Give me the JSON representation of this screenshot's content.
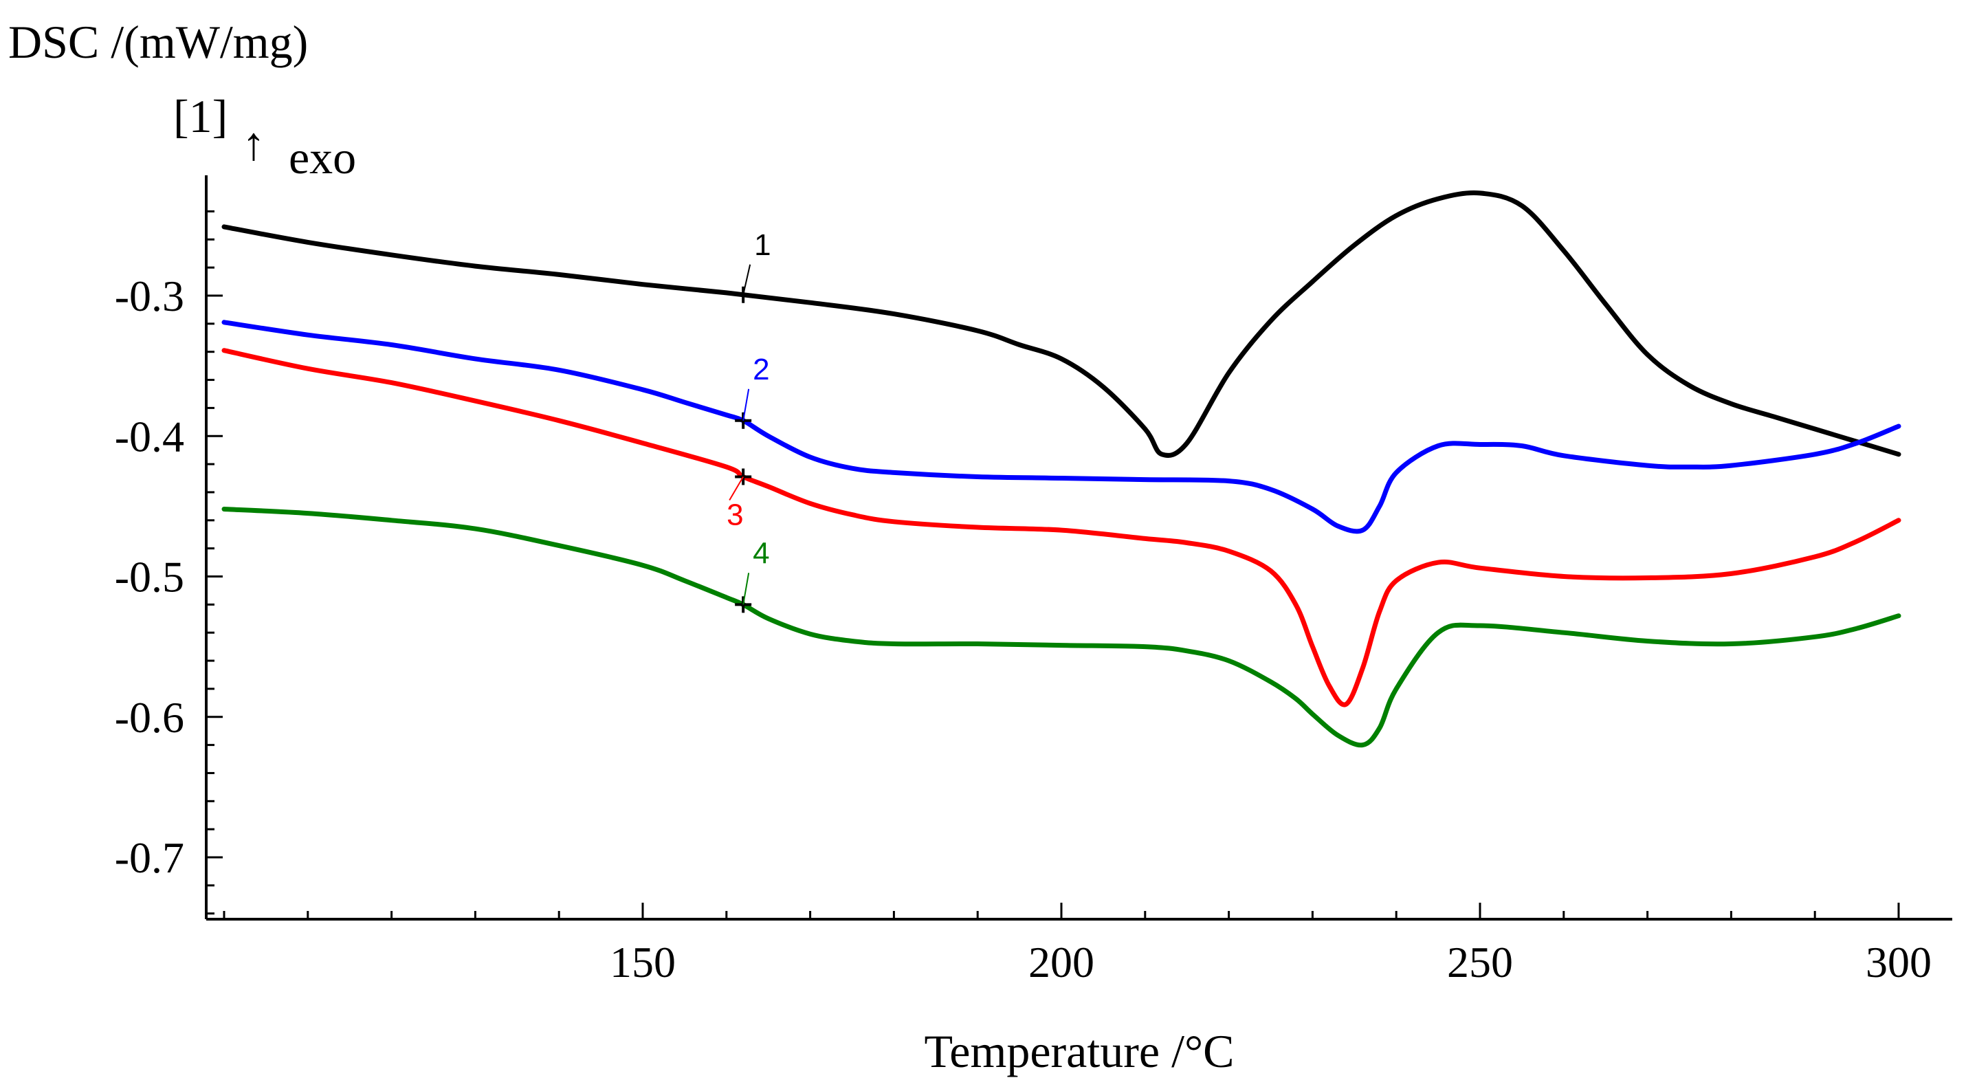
{
  "chart_data": {
    "type": "line",
    "title": "",
    "ylabel": "DSC /(mW/mg)",
    "ylabel_sub": "[1]",
    "exo_arrow": "↑",
    "exo_label": "exo",
    "xlabel": "Temperature /°C",
    "xlim": [
      98,
      306
    ],
    "ylim": [
      -0.76,
      -0.23
    ],
    "xticks": [
      150,
      200,
      250,
      300
    ],
    "xtick_labels": [
      "150",
      "200",
      "250",
      "300"
    ],
    "yticks": [
      -0.3,
      -0.4,
      -0.5,
      -0.6,
      -0.7
    ],
    "ytick_labels": [
      "-0.3",
      "-0.4",
      "-0.5",
      "-0.6",
      "-0.7"
    ],
    "marker_x": 162,
    "series": [
      {
        "name": "1",
        "color": "#000000",
        "x": [
          100,
          110,
          120,
          130,
          140,
          150,
          160,
          170,
          180,
          190,
          195,
          200,
          205,
          210,
          212,
          215,
          220,
          225,
          230,
          235,
          240,
          245,
          250,
          255,
          260,
          265,
          270,
          275,
          280,
          285,
          290,
          295,
          300
        ],
        "y": [
          -0.251,
          -0.262,
          -0.271,
          -0.279,
          -0.285,
          -0.292,
          -0.298,
          -0.305,
          -0.313,
          -0.325,
          -0.335,
          -0.345,
          -0.365,
          -0.395,
          -0.413,
          -0.405,
          -0.355,
          -0.318,
          -0.29,
          -0.264,
          -0.243,
          -0.231,
          -0.227,
          -0.236,
          -0.268,
          -0.306,
          -0.342,
          -0.364,
          -0.377,
          -0.386,
          -0.395,
          -0.404,
          -0.413
        ]
      },
      {
        "name": "2",
        "color": "#0000ff",
        "x": [
          100,
          110,
          120,
          130,
          140,
          150,
          155,
          160,
          162,
          165,
          170,
          175,
          180,
          190,
          200,
          210,
          220,
          225,
          230,
          233,
          236,
          238,
          240,
          245,
          250,
          255,
          260,
          270,
          275,
          280,
          290,
          295,
          300
        ],
        "y": [
          -0.319,
          -0.328,
          -0.335,
          -0.345,
          -0.353,
          -0.367,
          -0.376,
          -0.385,
          -0.389,
          -0.4,
          -0.415,
          -0.423,
          -0.426,
          -0.429,
          -0.43,
          -0.431,
          -0.432,
          -0.438,
          -0.452,
          -0.464,
          -0.467,
          -0.45,
          -0.426,
          -0.407,
          -0.406,
          -0.407,
          -0.414,
          -0.421,
          -0.422,
          -0.421,
          -0.413,
          -0.405,
          -0.393
        ]
      },
      {
        "name": "3",
        "color": "#ff0000",
        "x": [
          100,
          110,
          120,
          130,
          140,
          150,
          160,
          162,
          165,
          170,
          175,
          180,
          190,
          200,
          210,
          215,
          220,
          225,
          228,
          230,
          232,
          234,
          236,
          238,
          240,
          245,
          250,
          260,
          270,
          280,
          290,
          295,
          300
        ],
        "y": [
          -0.339,
          -0.352,
          -0.362,
          -0.375,
          -0.389,
          -0.405,
          -0.422,
          -0.429,
          -0.436,
          -0.448,
          -0.456,
          -0.461,
          -0.465,
          -0.467,
          -0.473,
          -0.476,
          -0.482,
          -0.496,
          -0.52,
          -0.55,
          -0.578,
          -0.591,
          -0.565,
          -0.525,
          -0.503,
          -0.49,
          -0.494,
          -0.5,
          -0.501,
          -0.498,
          -0.486,
          -0.475,
          -0.46
        ]
      },
      {
        "name": "4",
        "color": "#008000",
        "x": [
          100,
          110,
          120,
          130,
          140,
          150,
          155,
          160,
          162,
          165,
          170,
          175,
          180,
          190,
          200,
          210,
          215,
          220,
          225,
          228,
          230,
          233,
          236,
          238,
          240,
          245,
          250,
          260,
          270,
          280,
          290,
          295,
          300
        ],
        "y": [
          -0.452,
          -0.455,
          -0.46,
          -0.466,
          -0.478,
          -0.492,
          -0.503,
          -0.515,
          -0.52,
          -0.53,
          -0.541,
          -0.546,
          -0.548,
          -0.548,
          -0.549,
          -0.55,
          -0.553,
          -0.56,
          -0.575,
          -0.587,
          -0.598,
          -0.613,
          -0.62,
          -0.608,
          -0.58,
          -0.54,
          -0.535,
          -0.54,
          -0.546,
          -0.548,
          -0.543,
          -0.537,
          -0.528
        ]
      }
    ]
  }
}
